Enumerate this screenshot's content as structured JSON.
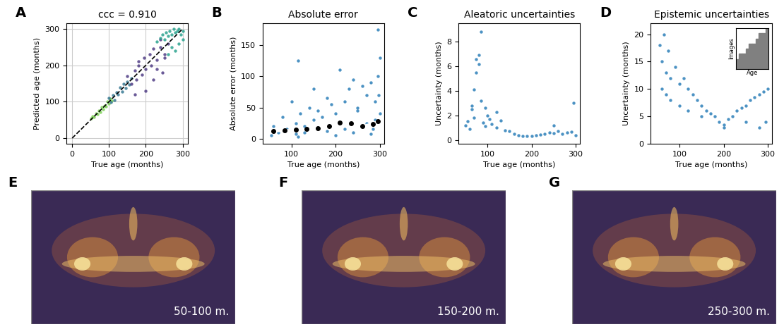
{
  "chart_data": [
    {
      "panel": "A",
      "type": "scatter",
      "title": "ccc = 0.910",
      "x_label": "True age (months)",
      "y_label": "Predicted age (months)",
      "xlim": [
        -15,
        315
      ],
      "ylim": [
        -15,
        315
      ],
      "xticks": [
        0,
        100,
        200,
        300
      ],
      "yticks": [
        0,
        100,
        200,
        300
      ],
      "grid": true,
      "series": [
        {
          "color": "#7ad151",
          "x": [
            52,
            56,
            60,
            64,
            68,
            72,
            76,
            80,
            84,
            88,
            92,
            96,
            100,
            104,
            108
          ],
          "y": [
            55,
            60,
            58,
            68,
            66,
            75,
            72,
            85,
            80,
            90,
            88,
            100,
            95,
            108,
            102
          ]
        },
        {
          "color": "#2c728e",
          "x": [
            100,
            105,
            110,
            115,
            120,
            125,
            130,
            135,
            140,
            145,
            150,
            155,
            160
          ],
          "y": [
            110,
            98,
            118,
            105,
            125,
            120,
            140,
            128,
            150,
            138,
            155,
            148,
            165
          ]
        },
        {
          "color": "#46327e",
          "x": [
            150,
            160,
            170,
            175,
            180,
            190,
            195,
            200,
            210,
            215,
            220,
            230,
            240,
            245,
            250,
            260,
            200,
            180,
            220,
            240,
            170,
            250,
            230
          ],
          "y": [
            170,
            150,
            185,
            160,
            200,
            175,
            220,
            190,
            230,
            200,
            245,
            215,
            250,
            180,
            230,
            260,
            130,
            210,
            160,
            270,
            120,
            220,
            190
          ]
        },
        {
          "color": "#1f9e89",
          "x": [
            230,
            240,
            245,
            250,
            255,
            260,
            265,
            270,
            275,
            280,
            285,
            290,
            295,
            300,
            270,
            280,
            290,
            260,
            300
          ],
          "y": [
            265,
            275,
            285,
            270,
            290,
            280,
            295,
            285,
            300,
            290,
            295,
            300,
            285,
            295,
            250,
            240,
            260,
            230,
            270
          ]
        },
        {
          "type": "line",
          "color": "#000000",
          "line_style": "dashed",
          "x": [
            0,
            300
          ],
          "y": [
            0,
            300
          ]
        }
      ]
    },
    {
      "panel": "B",
      "type": "scatter",
      "title": "Absolute error",
      "x_label": "True age (months)",
      "y_label": "Absolute error (months)",
      "xlim": [
        35,
        310
      ],
      "ylim": [
        -8,
        185
      ],
      "xticks": [
        100,
        200,
        300
      ],
      "yticks": [
        0,
        50,
        100,
        150
      ],
      "grid": false,
      "series": [
        {
          "color": "#1f77b4",
          "x": [
            55,
            60,
            70,
            80,
            90,
            100,
            110,
            115,
            120,
            130,
            140,
            150,
            160,
            170,
            180,
            190,
            200,
            210,
            220,
            230,
            240,
            250,
            260,
            270,
            280,
            290,
            295,
            300,
            110,
            115,
            180,
            200,
            220,
            240,
            260,
            280,
            290,
            295,
            150,
            130,
            250,
            270,
            285,
            298,
            300
          ],
          "y": [
            5,
            20,
            10,
            35,
            15,
            60,
            25,
            125,
            40,
            20,
            50,
            30,
            45,
            35,
            65,
            55,
            40,
            110,
            60,
            80,
            95,
            50,
            85,
            70,
            90,
            60,
            175,
            130,
            8,
            3,
            12,
            5,
            15,
            10,
            20,
            8,
            30,
            100,
            80,
            10,
            45,
            25,
            15,
            70,
            40
          ]
        },
        {
          "type": "line",
          "color": "#ffffff",
          "marker": "circle",
          "x": [
            60,
            85,
            110,
            135,
            160,
            185,
            210,
            235,
            260,
            285,
            295
          ],
          "y": [
            12,
            13,
            14,
            15,
            17,
            20,
            26,
            25,
            20,
            24,
            28
          ]
        }
      ]
    },
    {
      "panel": "C",
      "type": "scatter",
      "title": "Aleatoric uncertainties",
      "x_label": "True age (months)",
      "y_label": "Uncertainty (months)",
      "xlim": [
        35,
        310
      ],
      "ylim": [
        -0.3,
        9.5
      ],
      "xticks": [
        100,
        200,
        300
      ],
      "yticks": [
        0,
        2,
        4,
        6,
        8
      ],
      "grid": false,
      "series": [
        {
          "color": "#1f77b4",
          "x": [
            50,
            55,
            60,
            65,
            70,
            75,
            80,
            85,
            90,
            95,
            100,
            110,
            120,
            130,
            140,
            150,
            160,
            170,
            180,
            190,
            200,
            210,
            220,
            230,
            240,
            250,
            260,
            270,
            280,
            290,
            300,
            75,
            80,
            70,
            85,
            65,
            95,
            120,
            105,
            250,
            295
          ],
          "y": [
            1.2,
            1.5,
            0.9,
            2.5,
            1.8,
            5.5,
            6.2,
            8.8,
            1.4,
            1.1,
            2.0,
            1.3,
            1.0,
            1.6,
            0.8,
            0.7,
            0.5,
            0.4,
            0.3,
            0.35,
            0.3,
            0.4,
            0.45,
            0.5,
            0.6,
            0.55,
            0.7,
            0.5,
            0.6,
            0.65,
            0.4,
            6.6,
            6.9,
            4.1,
            3.2,
            2.8,
            2.6,
            2.3,
            1.7,
            1.2,
            3.0
          ]
        }
      ]
    },
    {
      "panel": "D",
      "type": "scatter",
      "title": "Epistemic uncertainties",
      "x_label": "True age (months)",
      "y_label": "Uncertainty (months)",
      "xlim": [
        35,
        310
      ],
      "ylim": [
        0,
        22
      ],
      "xticks": [
        100,
        200,
        300
      ],
      "yticks": [
        0,
        5,
        10,
        15,
        20
      ],
      "grid": false,
      "series": [
        {
          "color": "#1f77b4",
          "x": [
            55,
            60,
            65,
            70,
            75,
            80,
            90,
            100,
            110,
            120,
            130,
            140,
            150,
            160,
            170,
            180,
            190,
            200,
            210,
            220,
            230,
            240,
            250,
            260,
            270,
            280,
            290,
            300,
            60,
            70,
            80,
            100,
            120,
            150,
            200,
            250,
            280,
            295
          ],
          "y": [
            18,
            15,
            20,
            13,
            17,
            12,
            14,
            11,
            12,
            10,
            9,
            8,
            7,
            6,
            5.5,
            5,
            4,
            3.5,
            4.5,
            5,
            6,
            6.5,
            7,
            8,
            8.5,
            9,
            9.5,
            10,
            10,
            9,
            8,
            7,
            6,
            5,
            3,
            4,
            3,
            4
          ]
        }
      ],
      "inset": {
        "type": "histogram",
        "x_label": "Age",
        "y_label": "Images",
        "color": "#808080",
        "tick_labels": false,
        "bins": [
          50,
          75,
          100,
          125,
          150,
          175,
          200,
          225,
          250,
          275,
          300
        ],
        "counts": [
          2,
          3,
          3,
          4,
          5,
          5,
          6,
          7,
          7,
          8
        ]
      }
    },
    {
      "panel": "E",
      "type": "image",
      "annotation": "50-100 m."
    },
    {
      "panel": "F",
      "type": "image",
      "annotation": "150-200 m."
    },
    {
      "panel": "G",
      "type": "image",
      "annotation": "250-300 m."
    }
  ]
}
